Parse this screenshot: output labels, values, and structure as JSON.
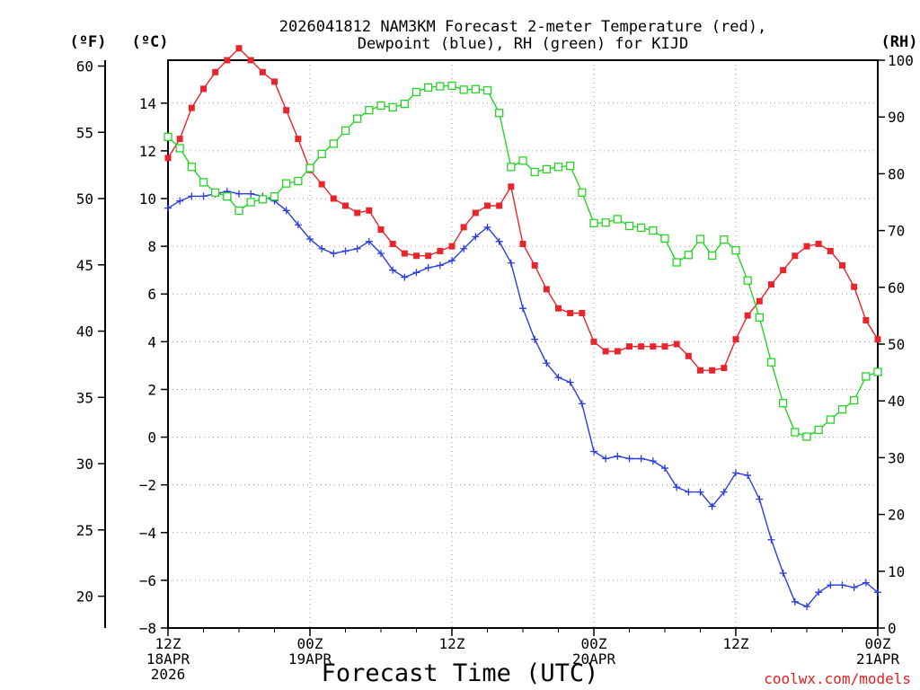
{
  "chart_data": {
    "type": "line",
    "title_line1": "2026041812 NAM3KM Forecast 2-meter Temperature (red),",
    "title_line2": "Dewpoint (blue), RH (green) for KIJD",
    "xlabel": "Forecast Time (UTC)",
    "credit": "coolwx.com/models",
    "units": {
      "fahrenheit": "(ºF)",
      "celsius": "(ºC)",
      "rh": "(RH)"
    },
    "x_start_hour": 0,
    "x_end_hour": 60,
    "x_ticks": [
      {
        "hour": 0,
        "lines": [
          "12Z",
          "18APR",
          "2026"
        ]
      },
      {
        "hour": 12,
        "lines": [
          "00Z",
          "19APR"
        ]
      },
      {
        "hour": 24,
        "lines": [
          "12Z"
        ]
      },
      {
        "hour": 36,
        "lines": [
          "00Z",
          "20APR"
        ]
      },
      {
        "hour": 48,
        "lines": [
          "12Z"
        ]
      },
      {
        "hour": 60,
        "lines": [
          "00Z",
          "21APR"
        ]
      }
    ],
    "celsius_axis": {
      "min": -8,
      "max": 15.8,
      "ticks": [
        "14",
        "12",
        "10",
        "8",
        "6",
        "4",
        "2",
        "0",
        "−2",
        "−4",
        "−6",
        "−8"
      ],
      "tick_values": [
        14,
        12,
        10,
        8,
        6,
        4,
        2,
        0,
        -2,
        -4,
        -6,
        -8
      ]
    },
    "fahrenheit_axis": {
      "ticks": [
        "60",
        "55",
        "50",
        "45",
        "40",
        "35",
        "30",
        "25",
        "20"
      ],
      "tick_values": [
        60,
        55,
        50,
        45,
        40,
        35,
        30,
        25,
        20
      ]
    },
    "rh_axis": {
      "min": 0,
      "max": 100,
      "ticks": [
        "100",
        "90",
        "80",
        "70",
        "60",
        "50",
        "40",
        "30",
        "20",
        "10",
        "0"
      ],
      "tick_values": [
        100,
        90,
        80,
        70,
        60,
        50,
        40,
        30,
        20,
        10,
        0
      ]
    },
    "series": [
      {
        "name": "Temperature",
        "unit": "C",
        "color": "#e8242c",
        "marker": "filled-square",
        "values": [
          11.7,
          12.5,
          13.8,
          14.6,
          15.3,
          15.8,
          16.3,
          15.8,
          15.3,
          14.9,
          13.7,
          12.5,
          11.2,
          10.6,
          10.0,
          9.7,
          9.4,
          9.5,
          8.7,
          8.1,
          7.7,
          7.6,
          7.6,
          7.8,
          8.0,
          8.8,
          9.4,
          9.7,
          9.7,
          10.5,
          8.1,
          7.2,
          6.2,
          5.4,
          5.2,
          5.2,
          4.0,
          3.6,
          3.6,
          3.8,
          3.8,
          3.8,
          3.8,
          3.9,
          3.4,
          2.8,
          2.8,
          2.9,
          4.1,
          5.1,
          5.7,
          6.4,
          7.0,
          7.6,
          8.0,
          8.1,
          7.8,
          7.2,
          6.3,
          4.9,
          4.1
        ]
      },
      {
        "name": "Dewpoint",
        "unit": "C",
        "color": "#2a3ee0",
        "marker": "plus",
        "values": [
          9.6,
          9.9,
          10.1,
          10.1,
          10.2,
          10.3,
          10.2,
          10.2,
          10.1,
          9.9,
          9.5,
          8.9,
          8.3,
          7.9,
          7.7,
          7.8,
          7.9,
          8.2,
          7.7,
          7.0,
          6.7,
          6.9,
          7.1,
          7.2,
          7.4,
          7.9,
          8.4,
          8.8,
          8.2,
          7.3,
          5.4,
          4.1,
          3.1,
          2.5,
          2.3,
          1.4,
          -0.6,
          -0.9,
          -0.8,
          -0.9,
          -0.9,
          -1.0,
          -1.3,
          -2.1,
          -2.3,
          -2.3,
          -2.9,
          -2.3,
          -1.5,
          -1.6,
          -2.6,
          -4.3,
          -5.7,
          -6.9,
          -7.1,
          -6.5,
          -6.2,
          -6.2,
          -6.3,
          -6.1,
          -6.5
        ]
      },
      {
        "name": "RH",
        "unit": "%",
        "color": "#26d426",
        "marker": "open-square",
        "values": [
          86.5,
          84.5,
          81.2,
          78.5,
          76.7,
          76.0,
          73.5,
          75.0,
          75.5,
          76.0,
          78.3,
          78.7,
          81.0,
          83.5,
          85.3,
          87.6,
          89.7,
          91.2,
          92.0,
          91.7,
          92.3,
          94.4,
          95.2,
          95.4,
          95.5,
          94.8,
          94.9,
          94.7,
          90.7,
          81.2,
          82.3,
          80.3,
          80.8,
          81.2,
          81.4,
          76.7,
          71.3,
          71.4,
          72.0,
          70.8,
          70.5,
          70.0,
          68.6,
          64.4,
          65.7,
          68.5,
          65.6,
          68.4,
          66.5,
          61.2,
          54.7,
          46.8,
          39.6,
          34.5,
          33.7,
          34.9,
          36.7,
          38.5,
          40.1,
          44.3,
          45.1
        ]
      }
    ]
  }
}
